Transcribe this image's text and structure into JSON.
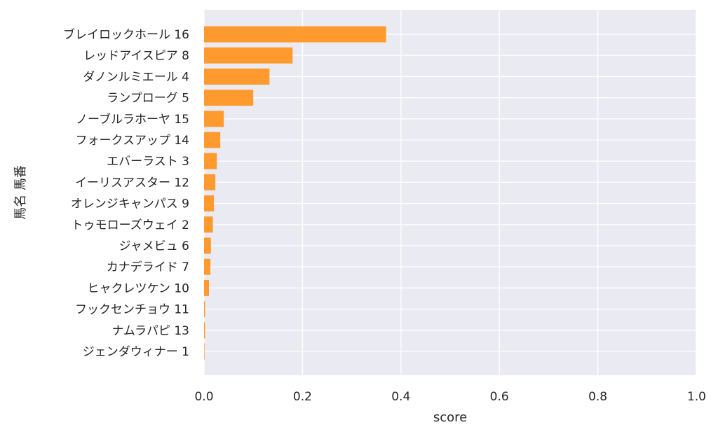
{
  "chart_data": {
    "type": "bar",
    "orientation": "horizontal",
    "categories": [
      "ブレイロックホール 16",
      "レッドアイスピア 8",
      "ダノンルミエール 4",
      "ランプローグ 5",
      "ノーブルラホーヤ 15",
      "フォークスアップ 14",
      "エバーラスト 3",
      "イーリスアスター 12",
      "オレンジキャンパス 9",
      "トゥモローズウェイ 2",
      "ジャメビュ 6",
      "カナデライド 7",
      "ヒャクレツケン 10",
      "フックセンチョウ 11",
      "ナムラパピ 13",
      "ジェンダウィナー 1"
    ],
    "values": [
      0.37,
      0.18,
      0.133,
      0.1,
      0.04,
      0.033,
      0.026,
      0.023,
      0.02,
      0.018,
      0.014,
      0.013,
      0.01,
      0.002,
      0.002,
      0.001
    ],
    "xlabel": "score",
    "ylabel": "馬名 馬番",
    "xlim": [
      0,
      1.0
    ],
    "xticks": [
      "0.0",
      "0.2",
      "0.4",
      "0.6",
      "0.8",
      "1.0"
    ],
    "grid": true,
    "colors": {
      "bar": "#ff9a2e",
      "plot_bg": "#eaeaf2",
      "grid": "#ffffff",
      "text": "#262626"
    }
  }
}
